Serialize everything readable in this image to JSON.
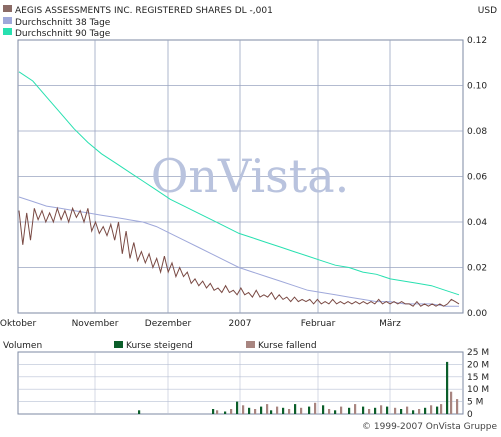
{
  "chart_data": [
    {
      "type": "line",
      "currency": "USD",
      "legend": [
        {
          "label": "AEGIS ASSESSMENTS INC. REGISTERED SHARES DL -,001",
          "color": "#8b6b66"
        },
        {
          "label": "Durchschnitt 38 Tage",
          "color": "#9fa8da"
        },
        {
          "label": "Durchschnitt 90 Tage",
          "color": "#28e0b0"
        }
      ],
      "legend_placement": "top-left",
      "x_labels": [
        "Oktober",
        "November",
        "Dezember",
        "2007",
        "Februar",
        "März"
      ],
      "ylim": [
        0,
        0.12
      ],
      "y_ticks": [
        "0.12",
        "0.10",
        "0.08",
        "0.06",
        "0.04",
        "0.02",
        "0.00"
      ],
      "grid": true,
      "watermark": "OnVista.",
      "series": [
        {
          "name": "AEGIS ASSESSMENTS INC. REGISTERED SHARES DL -,001",
          "color": "#7a4a44",
          "values": [
            0.045,
            0.03,
            0.044,
            0.032,
            0.046,
            0.041,
            0.045,
            0.04,
            0.044,
            0.04,
            0.046,
            0.041,
            0.045,
            0.04,
            0.046,
            0.042,
            0.045,
            0.04,
            0.046,
            0.036,
            0.04,
            0.035,
            0.038,
            0.034,
            0.039,
            0.032,
            0.04,
            0.026,
            0.036,
            0.024,
            0.031,
            0.023,
            0.027,
            0.022,
            0.026,
            0.02,
            0.024,
            0.018,
            0.025,
            0.018,
            0.022,
            0.016,
            0.02,
            0.016,
            0.018,
            0.013,
            0.015,
            0.012,
            0.014,
            0.011,
            0.013,
            0.01,
            0.011,
            0.009,
            0.012,
            0.009,
            0.01,
            0.008,
            0.011,
            0.008,
            0.009,
            0.007,
            0.01,
            0.007,
            0.008,
            0.007,
            0.009,
            0.006,
            0.008,
            0.006,
            0.007,
            0.005,
            0.007,
            0.005,
            0.006,
            0.005,
            0.006,
            0.004,
            0.006,
            0.004,
            0.005,
            0.004,
            0.006,
            0.004,
            0.005,
            0.004,
            0.005,
            0.004,
            0.005,
            0.004,
            0.005,
            0.004,
            0.005,
            0.004,
            0.006,
            0.004,
            0.005,
            0.004,
            0.005,
            0.004,
            0.005,
            0.004,
            0.004,
            0.003,
            0.005,
            0.003,
            0.004,
            0.003,
            0.004,
            0.003,
            0.004,
            0.003,
            0.004,
            0.006,
            0.005,
            0.004
          ]
        },
        {
          "name": "Durchschnitt 38 Tage",
          "color": "#9fa8da",
          "values": [
            0.051,
            0.049,
            0.047,
            0.046,
            0.045,
            0.044,
            0.043,
            0.042,
            0.041,
            0.04,
            0.038,
            0.035,
            0.032,
            0.029,
            0.026,
            0.023,
            0.02,
            0.018,
            0.016,
            0.014,
            0.012,
            0.01,
            0.009,
            0.008,
            0.007,
            0.006,
            0.005,
            0.005,
            0.004,
            0.004,
            0.004,
            0.003,
            0.003
          ]
        },
        {
          "name": "Durchschnitt 90 Tage",
          "color": "#28e0b0",
          "values": [
            0.106,
            0.102,
            0.095,
            0.088,
            0.081,
            0.075,
            0.07,
            0.066,
            0.062,
            0.058,
            0.054,
            0.05,
            0.047,
            0.044,
            0.041,
            0.038,
            0.035,
            0.033,
            0.031,
            0.029,
            0.027,
            0.025,
            0.023,
            0.021,
            0.02,
            0.018,
            0.017,
            0.015,
            0.014,
            0.013,
            0.012,
            0.01,
            0.008
          ]
        }
      ]
    },
    {
      "type": "bar",
      "title": "Volumen",
      "legend": [
        {
          "label": "Kurse steigend",
          "color": "#0b5e2a"
        },
        {
          "label": "Kurse fallend",
          "color": "#a88580"
        }
      ],
      "y_ticks": [
        "25 M",
        "20 M",
        "15 M",
        "10 M",
        "5 M",
        "0"
      ],
      "ylim": [
        0,
        25
      ],
      "series": [
        {
          "name": "Kurse steigend",
          "color": "#0b5e2a",
          "bars": [
            [
              60,
              1.5
            ],
            [
              97,
              2.0
            ],
            [
              103,
              1.0
            ],
            [
              109,
              5.0
            ],
            [
              115,
              2.5
            ],
            [
              121,
              3.0
            ],
            [
              126,
              1.5
            ],
            [
              132,
              2.5
            ],
            [
              138,
              4.0
            ],
            [
              145,
              3.0
            ],
            [
              152,
              3.5
            ],
            [
              158,
              1.5
            ],
            [
              165,
              2.5
            ],
            [
              172,
              3.0
            ],
            [
              178,
              2.5
            ],
            [
              184,
              3.0
            ],
            [
              191,
              2.0
            ],
            [
              197,
              1.5
            ],
            [
              203,
              2.5
            ],
            [
              209,
              3.0
            ],
            [
              214,
              21.0
            ]
          ]
        },
        {
          "name": "Kurse fallend",
          "color": "#a88580",
          "bars": [
            [
              99,
              1.5
            ],
            [
              106,
              2.0
            ],
            [
              112,
              3.5
            ],
            [
              118,
              2.0
            ],
            [
              124,
              4.0
            ],
            [
              129,
              3.0
            ],
            [
              135,
              2.0
            ],
            [
              141,
              2.5
            ],
            [
              148,
              4.5
            ],
            [
              155,
              2.0
            ],
            [
              161,
              3.0
            ],
            [
              168,
              4.0
            ],
            [
              175,
              2.0
            ],
            [
              181,
              3.5
            ],
            [
              188,
              2.5
            ],
            [
              194,
              3.0
            ],
            [
              200,
              2.0
            ],
            [
              206,
              3.5
            ],
            [
              211,
              4.0
            ],
            [
              216,
              9.0
            ],
            [
              219,
              6.0
            ]
          ]
        }
      ]
    }
  ],
  "footer": {
    "copyright": "© 1999-2007 OnVista Gruppe"
  }
}
